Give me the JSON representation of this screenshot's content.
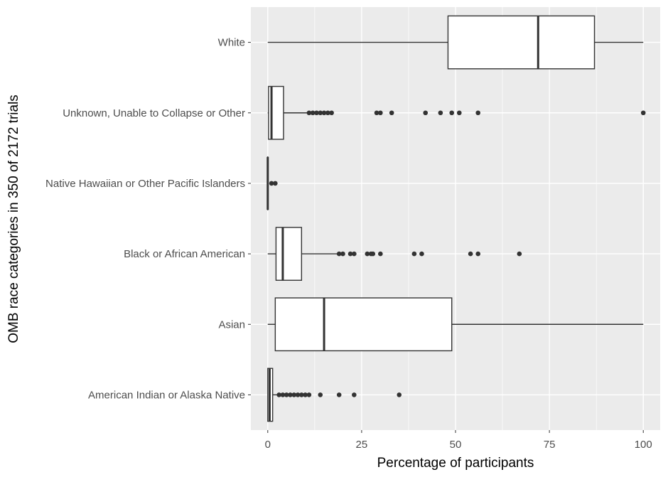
{
  "chart_data": {
    "type": "boxplot",
    "orientation": "horizontal",
    "xlabel": "Percentage of participants",
    "ylabel": "OMB race categories in 350  of  2172  trials",
    "xlim": [
      -4.5,
      104.5
    ],
    "x_ticks": [
      0,
      25,
      50,
      75,
      100
    ],
    "grid": true,
    "legend": "none",
    "colors": {
      "panel_background": "#ebebeb",
      "gridline": "#ffffff",
      "box_fill": "#ffffff",
      "box_stroke": "#333333",
      "outlier": "#333333",
      "tick_label": "#4d4d4d",
      "axis_title": "#000000"
    },
    "categories": [
      "White",
      "Unknown, Unable to Collapse or Other",
      "Native Hawaiian or Other Pacific Islanders",
      "Black or African American",
      "Asian",
      "American Indian or Alaska Native"
    ],
    "boxes": [
      {
        "category": "White",
        "whisker_low": 0,
        "q1": 48,
        "median": 72,
        "q3": 87,
        "whisker_high": 100,
        "outliers": []
      },
      {
        "category": "Unknown, Unable to Collapse or Other",
        "whisker_low": 0,
        "q1": 0.2,
        "median": 1,
        "q3": 4.2,
        "whisker_high": 10.5,
        "outliers": [
          11,
          12,
          13,
          14,
          15,
          16,
          17,
          29,
          30,
          33,
          42,
          46,
          49,
          51,
          56,
          100
        ]
      },
      {
        "category": "Native Hawaiian or Other Pacific Islanders",
        "whisker_low": 0,
        "q1": 0,
        "median": 0,
        "q3": 0,
        "whisker_high": 0,
        "outliers": [
          1,
          2
        ]
      },
      {
        "category": "Black or African American",
        "whisker_low": 0,
        "q1": 2.2,
        "median": 4,
        "q3": 9,
        "whisker_high": 18.5,
        "outliers": [
          19,
          20,
          22,
          23,
          26.5,
          27.5,
          28,
          30,
          39,
          41,
          54,
          56,
          67
        ]
      },
      {
        "category": "Asian",
        "whisker_low": 0,
        "q1": 2,
        "median": 15,
        "q3": 49,
        "whisker_high": 100,
        "outliers": []
      },
      {
        "category": "American Indian or Alaska Native",
        "whisker_low": 0,
        "q1": 0,
        "median": 0.5,
        "q3": 1.3,
        "whisker_high": 2.5,
        "outliers": [
          3,
          4,
          5,
          6,
          7,
          8,
          9,
          10,
          11,
          14,
          19,
          23,
          35
        ]
      }
    ]
  }
}
